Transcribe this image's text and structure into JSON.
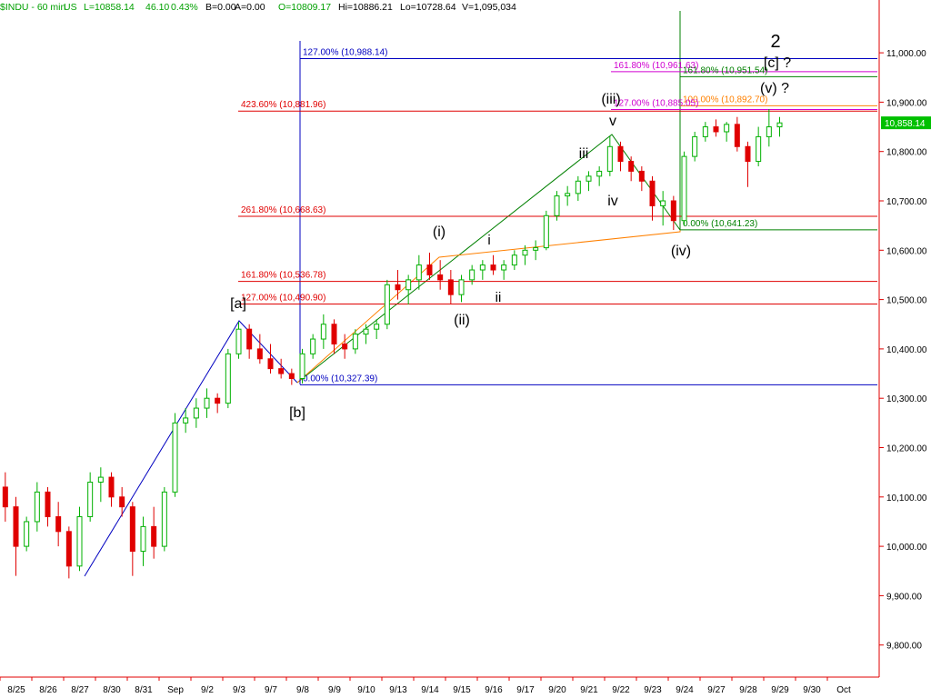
{
  "chart_data": {
    "type": "candlestick",
    "info": [
      "$INDU - 60 min",
      "US",
      "L=10858.14",
      "46.10",
      "0.43%",
      "B=0.00",
      "A=0.00",
      "O=10809.17",
      "Hi=10886.21",
      "Lo=10728.64",
      "V=1,095,034"
    ],
    "categories": [
      "8/25",
      "8/26",
      "8/27",
      "8/30",
      "8/31",
      "Sep",
      "9/2",
      "9/3",
      "9/7",
      "9/8",
      "9/9",
      "9/10",
      "9/13",
      "9/14",
      "9/15",
      "9/16",
      "9/17",
      "9/20",
      "9/21",
      "9/22",
      "9/23",
      "9/24",
      "9/27",
      "9/28",
      "9/29",
      "9/30",
      "Oct"
    ],
    "candles": [
      [
        10120,
        10150,
        10050,
        10080
      ],
      [
        10080,
        10100,
        9940,
        10000
      ],
      [
        10000,
        10060,
        9990,
        10050
      ],
      [
        10050,
        10130,
        10030,
        10110
      ],
      [
        10110,
        10120,
        10040,
        10060
      ],
      [
        10060,
        10090,
        10000,
        10030
      ],
      [
        10030,
        10040,
        9935,
        9960
      ],
      [
        9960,
        10080,
        9950,
        10060
      ],
      [
        10060,
        10150,
        10050,
        10130
      ],
      [
        10130,
        10160,
        10090,
        10140
      ],
      [
        10140,
        10150,
        10080,
        10100
      ],
      [
        10100,
        10120,
        10060,
        10080
      ],
      [
        10080,
        10090,
        9940,
        9990
      ],
      [
        9990,
        10060,
        9960,
        10040
      ],
      [
        10040,
        10080,
        9975,
        10000
      ],
      [
        10000,
        10120,
        9990,
        10110
      ],
      [
        10110,
        10270,
        10100,
        10250
      ],
      [
        10250,
        10280,
        10230,
        10260
      ],
      [
        10260,
        10300,
        10240,
        10280
      ],
      [
        10280,
        10320,
        10260,
        10300
      ],
      [
        10300,
        10310,
        10270,
        10290
      ],
      [
        10290,
        10400,
        10280,
        10390
      ],
      [
        10390,
        10455,
        10380,
        10440
      ],
      [
        10440,
        10450,
        10380,
        10400
      ],
      [
        10400,
        10430,
        10370,
        10380
      ],
      [
        10380,
        10410,
        10350,
        10360
      ],
      [
        10360,
        10380,
        10340,
        10350
      ],
      [
        10350,
        10360,
        10327,
        10340
      ],
      [
        10340,
        10400,
        10330,
        10390
      ],
      [
        10390,
        10430,
        10380,
        10420
      ],
      [
        10420,
        10470,
        10400,
        10450
      ],
      [
        10450,
        10460,
        10390,
        10410
      ],
      [
        10410,
        10430,
        10380,
        10400
      ],
      [
        10400,
        10440,
        10390,
        10430
      ],
      [
        10430,
        10450,
        10410,
        10440
      ],
      [
        10440,
        10460,
        10420,
        10450
      ],
      [
        10450,
        10540,
        10440,
        10530
      ],
      [
        10530,
        10560,
        10500,
        10520
      ],
      [
        10520,
        10550,
        10490,
        10540
      ],
      [
        10540,
        10590,
        10520,
        10570
      ],
      [
        10570,
        10595,
        10540,
        10550
      ],
      [
        10550,
        10580,
        10520,
        10540
      ],
      [
        10540,
        10560,
        10490,
        10510
      ],
      [
        10510,
        10550,
        10495,
        10540
      ],
      [
        10540,
        10570,
        10530,
        10560
      ],
      [
        10560,
        10580,
        10540,
        10570
      ],
      [
        10570,
        10590,
        10550,
        10560
      ],
      [
        10560,
        10580,
        10540,
        10570
      ],
      [
        10570,
        10600,
        10560,
        10590
      ],
      [
        10590,
        10610,
        10570,
        10600
      ],
      [
        10600,
        10620,
        10580,
        10605
      ],
      [
        10605,
        10680,
        10600,
        10670
      ],
      [
        10670,
        10720,
        10660,
        10710
      ],
      [
        10710,
        10730,
        10690,
        10715
      ],
      [
        10715,
        10750,
        10700,
        10740
      ],
      [
        10740,
        10760,
        10720,
        10750
      ],
      [
        10750,
        10770,
        10730,
        10760
      ],
      [
        10760,
        10831,
        10750,
        10810
      ],
      [
        10810,
        10820,
        10760,
        10780
      ],
      [
        10780,
        10790,
        10740,
        10760
      ],
      [
        10760,
        10770,
        10720,
        10740
      ],
      [
        10740,
        10750,
        10660,
        10690
      ],
      [
        10690,
        10720,
        10650,
        10700
      ],
      [
        10700,
        10710,
        10641,
        10660
      ],
      [
        10660,
        10800,
        10650,
        10790
      ],
      [
        10790,
        10840,
        10780,
        10830
      ],
      [
        10830,
        10860,
        10820,
        10850
      ],
      [
        10850,
        10865,
        10830,
        10840
      ],
      [
        10840,
        10860,
        10820,
        10855
      ],
      [
        10855,
        10870,
        10800,
        10810
      ],
      [
        10810,
        10820,
        10728,
        10780
      ],
      [
        10780,
        10850,
        10770,
        10830
      ],
      [
        10830,
        10886,
        10810,
        10850
      ],
      [
        10850,
        10870,
        10830,
        10858
      ]
    ],
    "up_color": "#00b000",
    "down_color": "#e00000",
    "ylim": [
      9735,
      11107
    ],
    "yticks": [
      {
        "value": 9800,
        "label": "9,800.00"
      },
      {
        "value": 9900,
        "label": "9,900.00"
      },
      {
        "value": 10000,
        "label": "10,000.00"
      },
      {
        "value": 10100,
        "label": "10,100.00"
      },
      {
        "value": 10200,
        "label": "10,200.00"
      },
      {
        "value": 10300,
        "label": "10,300.00"
      },
      {
        "value": 10400,
        "label": "10,400.00"
      },
      {
        "value": 10500,
        "label": "10,500.00"
      },
      {
        "value": 10600,
        "label": "10,600.00"
      },
      {
        "value": 10700,
        "label": "10,700.00"
      },
      {
        "value": 10800,
        "label": "10,800.00"
      },
      {
        "value": 10900,
        "label": "10,900.00"
      },
      {
        "value": 11000,
        "label": "11,000.00"
      }
    ],
    "last": {
      "value": 10858.14,
      "label": "10,858.14"
    },
    "levels": [
      {
        "label": "127.00% (10,988.14)",
        "value": 10988.14,
        "color": "#0000c0"
      },
      {
        "label": "161.80% (10,961.63)",
        "value": 10961.63,
        "color": "#d000d0"
      },
      {
        "label": "161.80% (10,951.54)",
        "value": 10951.54,
        "color": "#008000"
      },
      {
        "label": "100.00% (10,892.70)",
        "value": 10892.7,
        "color": "#ff8000"
      },
      {
        "label": "127.00% (10,885.05)",
        "value": 10885.05,
        "color": "#d000d0"
      },
      {
        "label": "423.60% (10,881.96)",
        "value": 10881.96,
        "color": "#e00000"
      },
      {
        "label": "261.80% (10,668.63)",
        "value": 10668.63,
        "color": "#e00000"
      },
      {
        "label": "0.00% (10,641.23)",
        "value": 10641.23,
        "color": "#008000"
      },
      {
        "label": "161.80% (10,536.78)",
        "value": 10536.78,
        "color": "#e00000"
      },
      {
        "label": "127.00% (10,490.90)",
        "value": 10490.9,
        "color": "#e00000"
      },
      {
        "label": "0.00% (10,327.39)",
        "value": 10327.39,
        "color": "#0000c0"
      }
    ],
    "annotations": [
      "2",
      "[c] ?",
      "(v) ?",
      "(iii)",
      "v",
      "iii",
      "iv",
      "(iv)",
      "(i)",
      "i",
      "ii",
      "(ii)",
      "[a]",
      "[b]"
    ]
  }
}
